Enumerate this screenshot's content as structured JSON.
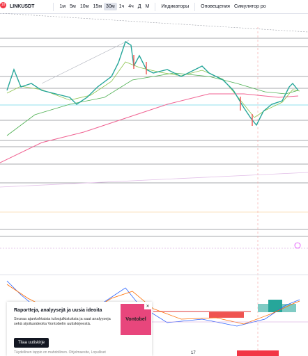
{
  "toolbar": {
    "badge": "10",
    "symbol": "LINKUSDT",
    "timeframes": [
      "1м",
      "5м",
      "10м",
      "15м",
      "30м",
      "1ч",
      "4ч",
      "Д",
      "М"
    ],
    "indicators": "Индикаторы",
    "alerts": "Оповещения",
    "simulator": "Симулятор ро"
  },
  "axis": {
    "time_label": "17"
  },
  "ad": {
    "title": "Raportteja, analyysejä ja uusia ideoita",
    "text": "Seuraa ajankohtaisia tulosjulkistuksia ja saat analyyseja sekä sijoitusideoita Vontobelin uutiskirjeestä.",
    "button": "Tilaa uutiskirje",
    "logo": "Vontobel",
    "footer": "Täydellinen tappio on mahdollinen. Ohjelmaesite, Lopulliset"
  }
}
